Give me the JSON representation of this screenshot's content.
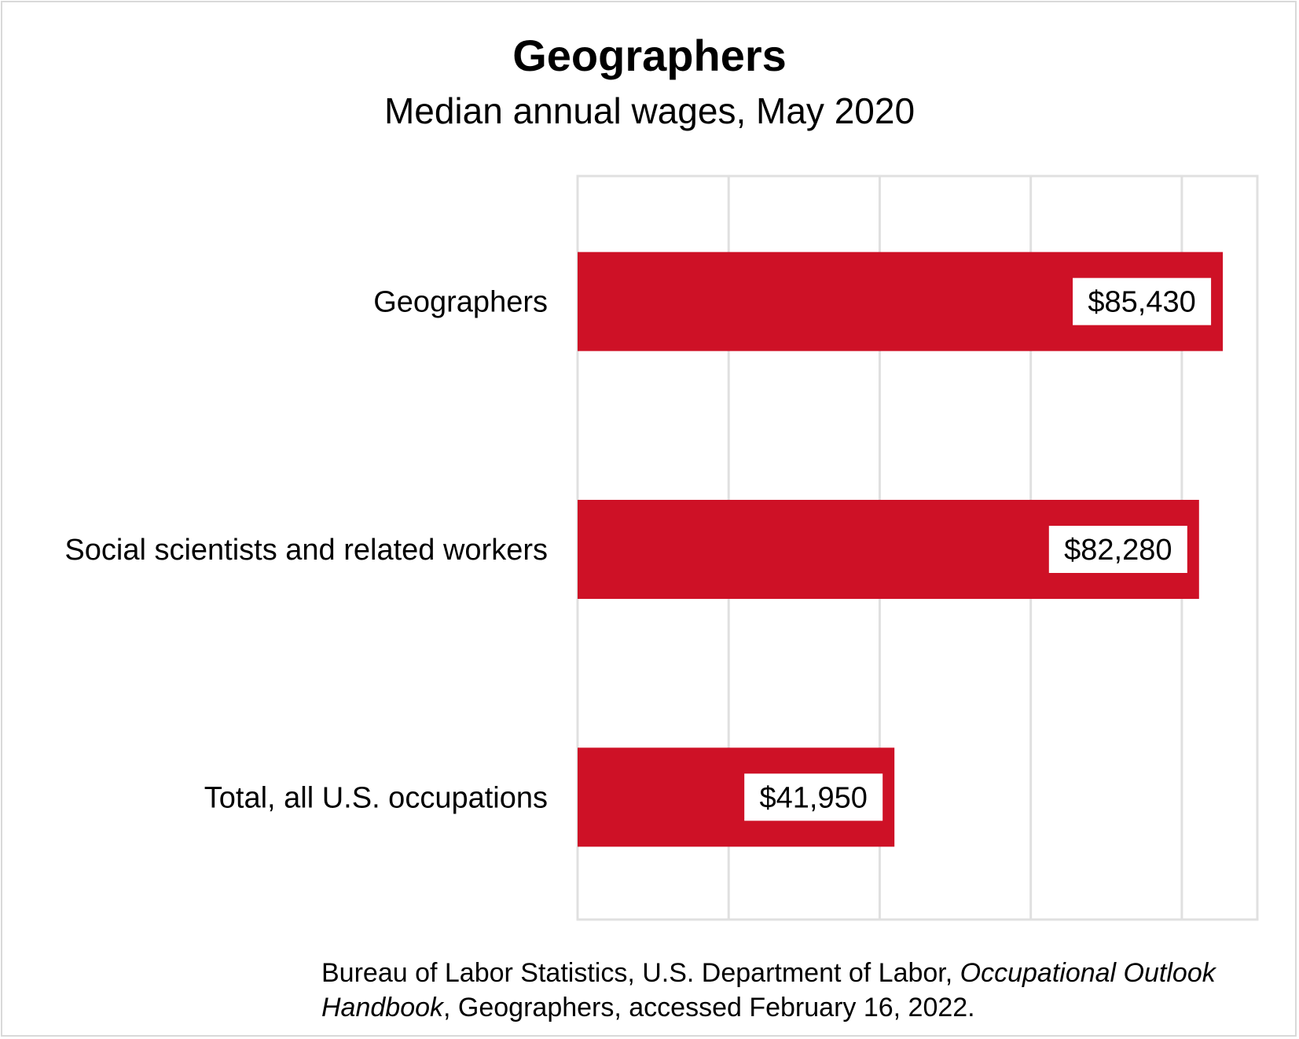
{
  "chart_data": {
    "type": "bar",
    "orientation": "horizontal",
    "title": "Geographers",
    "subtitle": "Median annual wages, May 2020",
    "categories": [
      "Geographers",
      "Social scientists and related workers",
      "Total, all U.S. occupations"
    ],
    "values": [
      85430,
      82280,
      41950
    ],
    "data_labels": [
      "$85,430",
      "$82,280",
      "$41,950"
    ],
    "xlim": [
      0,
      90000
    ],
    "x_gridline_step": 20000,
    "grid": true,
    "bar_color": "#ce1126",
    "source": {
      "part1": "Bureau of Labor Statistics, U.S. Department of Labor, ",
      "italic1": "Occupational Outlook",
      "italic2": "Handbook",
      "part2": ", Geographers, accessed February 16, 2022."
    }
  }
}
